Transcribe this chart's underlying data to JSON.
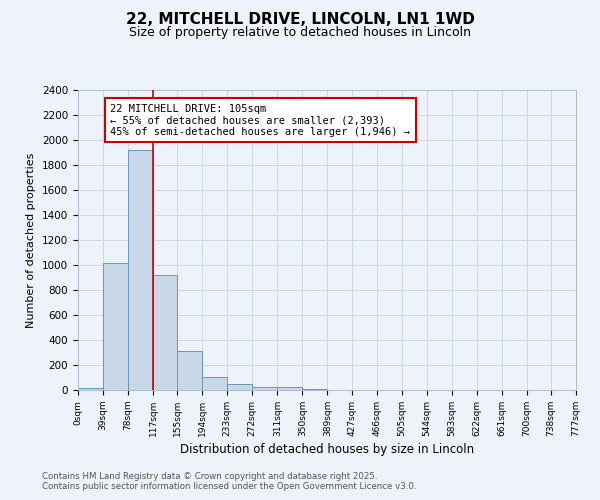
{
  "title1": "22, MITCHELL DRIVE, LINCOLN, LN1 1WD",
  "title2": "Size of property relative to detached houses in Lincoln",
  "xlabel": "Distribution of detached houses by size in Lincoln",
  "ylabel": "Number of detached properties",
  "bar_values": [
    15,
    1020,
    1920,
    920,
    315,
    105,
    45,
    25,
    25,
    5,
    0,
    0,
    0,
    0,
    0,
    0,
    0,
    0,
    0,
    0
  ],
  "bin_edges": [
    0,
    39,
    78,
    117,
    155,
    194,
    233,
    272,
    311,
    350,
    389,
    427,
    466,
    505,
    544,
    583,
    622,
    661,
    700,
    738,
    777
  ],
  "tick_labels": [
    "0sqm",
    "39sqm",
    "78sqm",
    "117sqm",
    "155sqm",
    "194sqm",
    "233sqm",
    "272sqm",
    "311sqm",
    "350sqm",
    "389sqm",
    "427sqm",
    "466sqm",
    "505sqm",
    "544sqm",
    "583sqm",
    "622sqm",
    "661sqm",
    "700sqm",
    "738sqm",
    "777sqm"
  ],
  "ylim": [
    0,
    2400
  ],
  "yticks": [
    0,
    200,
    400,
    600,
    800,
    1000,
    1200,
    1400,
    1600,
    1800,
    2000,
    2200,
    2400
  ],
  "bar_color": "#c8d8e8",
  "bar_edgecolor": "#6699bb",
  "bar_linewidth": 0.7,
  "red_line_x": 117,
  "annotation_text": "22 MITCHELL DRIVE: 105sqm\n← 55% of detached houses are smaller (2,393)\n45% of semi-detached houses are larger (1,946) →",
  "annotation_box_color": "#ffffff",
  "annotation_box_edgecolor": "#cc0000",
  "grid_color": "#c8d4e8",
  "background_color": "#eef2fa",
  "footnote1": "Contains HM Land Registry data © Crown copyright and database right 2025.",
  "footnote2": "Contains public sector information licensed under the Open Government Licence v3.0."
}
